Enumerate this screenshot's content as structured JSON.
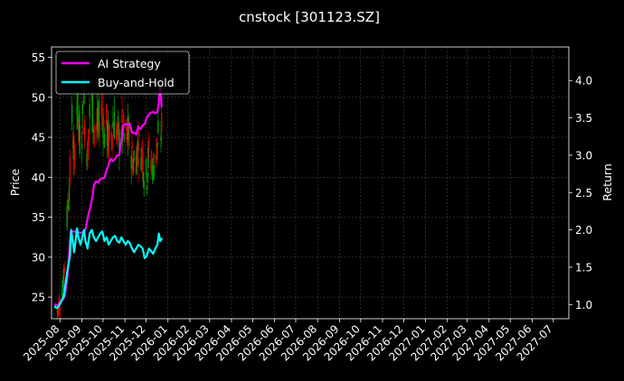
{
  "chart_data": {
    "type": "line",
    "title": "cnstock [301123.SZ]",
    "ylabel": "Price",
    "y2label": "Return",
    "grid": true,
    "legend_position": "top-left",
    "ylim": [
      22.3,
      56.3
    ],
    "y2lim": [
      0.81,
      4.45
    ],
    "xlim": [
      "2025-07-20",
      "2027-07-23"
    ],
    "yticks": [
      25,
      30,
      35,
      40,
      45,
      50,
      55
    ],
    "y2ticks": [
      "1.0",
      "1.5",
      "2.0",
      "2.5",
      "3.0",
      "3.5",
      "4.0"
    ],
    "xticks": [
      "2025-08",
      "2025-09",
      "2025-10",
      "2025-11",
      "2025-12",
      "2026-01",
      "2026-02",
      "2026-03",
      "2026-04",
      "2026-05",
      "2026-06",
      "2026-07",
      "2026-08",
      "2026-09",
      "2026-10",
      "2026-11",
      "2026-12",
      "2027-01",
      "2027-02",
      "2027-03",
      "2027-04",
      "2027-05",
      "2027-06",
      "2027-07"
    ],
    "candle_colors": {
      "up": "#00a000",
      "down": "#e00000"
    },
    "series": [
      {
        "name": "AI Strategy",
        "axis": "right",
        "color": "#ff00ff",
        "dates": [
          "2025-07-25",
          "2025-07-29",
          "2025-08-02",
          "2025-08-06",
          "2025-08-08",
          "2025-08-11",
          "2025-08-14",
          "2025-08-16",
          "2025-08-20",
          "2025-08-25",
          "2025-08-30",
          "2025-09-03",
          "2025-09-06",
          "2025-09-08",
          "2025-09-10",
          "2025-09-13",
          "2025-09-16",
          "2025-09-18",
          "2025-09-21",
          "2025-09-24",
          "2025-09-27",
          "2025-09-30",
          "2025-10-03",
          "2025-10-06",
          "2025-10-09",
          "2025-10-12",
          "2025-10-15",
          "2025-10-18",
          "2025-10-21",
          "2025-10-24",
          "2025-10-27",
          "2025-10-30",
          "2025-11-02",
          "2025-11-05",
          "2025-11-08",
          "2025-11-11",
          "2025-11-14",
          "2025-11-17",
          "2025-11-20",
          "2025-11-23",
          "2025-11-26",
          "2025-11-29",
          "2025-12-02",
          "2025-12-05",
          "2025-12-08",
          "2025-12-11",
          "2025-12-14",
          "2025-12-17",
          "2025-12-19",
          "2025-12-21",
          "2025-12-23"
        ],
        "values": [
          1.0,
          0.99,
          1.03,
          1.08,
          1.12,
          1.32,
          1.68,
          1.98,
          1.98,
          1.97,
          1.96,
          1.97,
          2.0,
          2.1,
          2.2,
          2.3,
          2.45,
          2.6,
          2.65,
          2.63,
          2.68,
          2.69,
          2.7,
          2.8,
          2.88,
          2.95,
          2.92,
          2.95,
          3.0,
          3.0,
          3.2,
          3.4,
          3.42,
          3.4,
          3.42,
          3.3,
          3.3,
          3.28,
          3.38,
          3.35,
          3.4,
          3.42,
          3.5,
          3.55,
          3.57,
          3.58,
          3.56,
          3.58,
          3.7,
          3.95,
          3.65
        ]
      },
      {
        "name": "Buy-and-Hold",
        "axis": "right",
        "color": "#00ffff",
        "dates": [
          "2025-07-25",
          "2025-07-28",
          "2025-07-31",
          "2025-08-03",
          "2025-08-06",
          "2025-08-08",
          "2025-08-10",
          "2025-08-12",
          "2025-08-15",
          "2025-08-17",
          "2025-08-19",
          "2025-08-21",
          "2025-08-23",
          "2025-08-25",
          "2025-08-27",
          "2025-08-30",
          "2025-09-02",
          "2025-09-04",
          "2025-09-06",
          "2025-09-09",
          "2025-09-12",
          "2025-09-15",
          "2025-09-18",
          "2025-09-21",
          "2025-09-24",
          "2025-09-27",
          "2025-09-30",
          "2025-10-03",
          "2025-10-06",
          "2025-10-09",
          "2025-10-12",
          "2025-10-15",
          "2025-10-18",
          "2025-10-21",
          "2025-10-24",
          "2025-10-27",
          "2025-10-30",
          "2025-11-02",
          "2025-11-05",
          "2025-11-08",
          "2025-11-11",
          "2025-11-14",
          "2025-11-17",
          "2025-11-20",
          "2025-11-23",
          "2025-11-26",
          "2025-11-29",
          "2025-12-02",
          "2025-12-05",
          "2025-12-08",
          "2025-12-11",
          "2025-12-14",
          "2025-12-17",
          "2025-12-19",
          "2025-12-21",
          "2025-12-23"
        ],
        "values": [
          0.97,
          0.95,
          0.99,
          1.05,
          1.1,
          1.22,
          1.36,
          1.48,
          1.65,
          2.0,
          1.85,
          1.7,
          1.85,
          2.02,
          1.9,
          1.8,
          1.92,
          2.0,
          1.85,
          1.75,
          1.95,
          2.0,
          1.9,
          1.85,
          1.9,
          1.95,
          1.98,
          1.85,
          1.9,
          1.8,
          1.85,
          1.9,
          1.92,
          1.85,
          1.83,
          1.9,
          1.85,
          1.8,
          1.85,
          1.82,
          1.75,
          1.7,
          1.75,
          1.8,
          1.78,
          1.75,
          1.62,
          1.65,
          1.75,
          1.72,
          1.68,
          1.75,
          1.8,
          1.95,
          1.85,
          1.88
        ]
      }
    ]
  }
}
